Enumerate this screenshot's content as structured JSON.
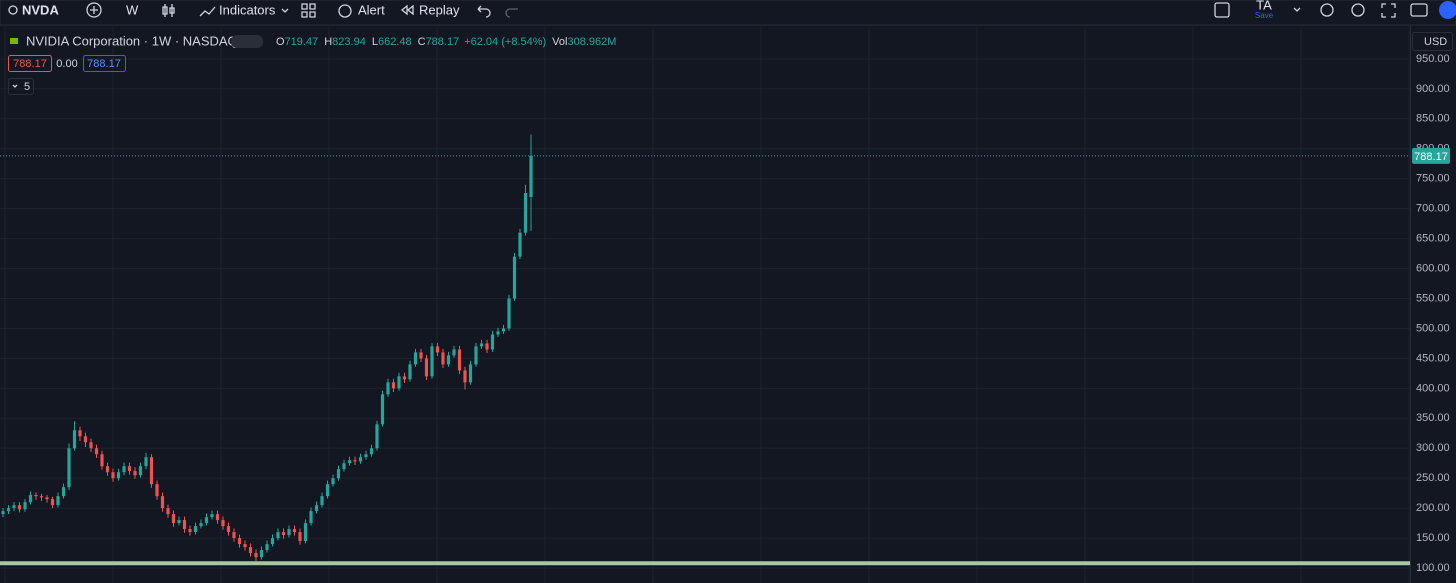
{
  "toolbar": {
    "symbol": "NVDA",
    "interval": "W",
    "indicators": "Indicators",
    "alert": "Alert",
    "replay": "Replay",
    "layout_name": "TA",
    "save": "Save"
  },
  "legend": {
    "title": "NVIDIA Corporation · 1W · NASDAQ",
    "o_label": "O",
    "h_label": "H",
    "l_label": "L",
    "c_label": "C",
    "change": "+62.04 (+8.54%)",
    "vol_label": "Vol",
    "volume": "308.962M",
    "sell": "788.17",
    "spread": "0.00",
    "buy": "788.17",
    "collapsed_count": "5"
  },
  "currency": "USD",
  "chart_data": {
    "type": "candlestick",
    "up_color": "#26a69a",
    "down_color": "#ef5350",
    "grid": true,
    "ylim": [
      75,
      1005
    ],
    "yticks": [
      {
        "value": 100,
        "label": "100.00"
      },
      {
        "value": 150,
        "label": "150.00"
      },
      {
        "value": 200,
        "label": "200.00"
      },
      {
        "value": 250,
        "label": "250.00"
      },
      {
        "value": 300,
        "label": "300.00"
      },
      {
        "value": 350,
        "label": "350.00"
      },
      {
        "value": 400,
        "label": "400.00"
      },
      {
        "value": 450,
        "label": "450.00"
      },
      {
        "value": 500,
        "label": "500.00"
      },
      {
        "value": 550,
        "label": "550.00"
      },
      {
        "value": 600,
        "label": "600.00"
      },
      {
        "value": 650,
        "label": "650.00"
      },
      {
        "value": 700,
        "label": "700.00"
      },
      {
        "value": 750,
        "label": "750.00"
      },
      {
        "value": 800,
        "label": "800.00"
      },
      {
        "value": 850,
        "label": "850.00"
      },
      {
        "value": 900,
        "label": "900.00"
      },
      {
        "value": 950,
        "label": "950.00"
      }
    ],
    "horizontal_line": {
      "value": 108,
      "color": "#a5c9a0"
    },
    "candles": [
      [
        190,
        200,
        185,
        195
      ],
      [
        195,
        205,
        190,
        200
      ],
      [
        200,
        210,
        195,
        205
      ],
      [
        205,
        210,
        193,
        198
      ],
      [
        198,
        215,
        194,
        210
      ],
      [
        210,
        228,
        206,
        222
      ],
      [
        222,
        226,
        214,
        220
      ],
      [
        220,
        224,
        212,
        218
      ],
      [
        218,
        222,
        209,
        215
      ],
      [
        215,
        219,
        200,
        205
      ],
      [
        205,
        226,
        201,
        220
      ],
      [
        220,
        241,
        216,
        235
      ],
      [
        235,
        308,
        230,
        300
      ],
      [
        300,
        345,
        296,
        330
      ],
      [
        330,
        336,
        312,
        320
      ],
      [
        320,
        326,
        302,
        310
      ],
      [
        310,
        316,
        294,
        300
      ],
      [
        300,
        306,
        284,
        290
      ],
      [
        290,
        296,
        264,
        270
      ],
      [
        270,
        276,
        254,
        260
      ],
      [
        260,
        266,
        244,
        250
      ],
      [
        250,
        266,
        246,
        260
      ],
      [
        260,
        276,
        255,
        270
      ],
      [
        270,
        276,
        256,
        262
      ],
      [
        262,
        268,
        249,
        255
      ],
      [
        255,
        276,
        251,
        270
      ],
      [
        270,
        292,
        265,
        285
      ],
      [
        285,
        290,
        234,
        240
      ],
      [
        240,
        246,
        214,
        220
      ],
      [
        220,
        226,
        194,
        200
      ],
      [
        200,
        206,
        184,
        190
      ],
      [
        190,
        196,
        169,
        175
      ],
      [
        175,
        186,
        171,
        180
      ],
      [
        180,
        186,
        159,
        165
      ],
      [
        165,
        171,
        154,
        160
      ],
      [
        160,
        176,
        156,
        170
      ],
      [
        170,
        181,
        166,
        175
      ],
      [
        175,
        191,
        171,
        185
      ],
      [
        185,
        196,
        181,
        190
      ],
      [
        190,
        196,
        174,
        180
      ],
      [
        180,
        186,
        164,
        170
      ],
      [
        170,
        176,
        154,
        160
      ],
      [
        160,
        166,
        144,
        150
      ],
      [
        150,
        156,
        134,
        140
      ],
      [
        140,
        146,
        129,
        135
      ],
      [
        135,
        141,
        119,
        125
      ],
      [
        125,
        131,
        112,
        118
      ],
      [
        118,
        136,
        114,
        130
      ],
      [
        130,
        146,
        126,
        140
      ],
      [
        140,
        156,
        136,
        150
      ],
      [
        150,
        166,
        146,
        160
      ],
      [
        160,
        166,
        149,
        155
      ],
      [
        155,
        171,
        151,
        165
      ],
      [
        165,
        171,
        154,
        160
      ],
      [
        160,
        166,
        139,
        145
      ],
      [
        145,
        181,
        141,
        175
      ],
      [
        175,
        201,
        171,
        195
      ],
      [
        195,
        211,
        191,
        205
      ],
      [
        205,
        226,
        201,
        220
      ],
      [
        220,
        246,
        216,
        240
      ],
      [
        240,
        256,
        236,
        250
      ],
      [
        250,
        271,
        246,
        265
      ],
      [
        265,
        281,
        261,
        275
      ],
      [
        275,
        286,
        271,
        280
      ],
      [
        280,
        286,
        272,
        278
      ],
      [
        278,
        291,
        274,
        285
      ],
      [
        285,
        296,
        281,
        290
      ],
      [
        290,
        306,
        286,
        300
      ],
      [
        300,
        346,
        296,
        340
      ],
      [
        340,
        396,
        336,
        390
      ],
      [
        390,
        416,
        386,
        410
      ],
      [
        410,
        416,
        394,
        400
      ],
      [
        400,
        426,
        396,
        420
      ],
      [
        420,
        426,
        409,
        415
      ],
      [
        415,
        446,
        411,
        440
      ],
      [
        440,
        466,
        436,
        460
      ],
      [
        460,
        466,
        444,
        450
      ],
      [
        450,
        456,
        414,
        420
      ],
      [
        420,
        476,
        416,
        470
      ],
      [
        470,
        476,
        454,
        460
      ],
      [
        460,
        466,
        434,
        440
      ],
      [
        440,
        461,
        436,
        455
      ],
      [
        455,
        471,
        451,
        465
      ],
      [
        465,
        471,
        424,
        430
      ],
      [
        430,
        436,
        398,
        410
      ],
      [
        410,
        446,
        406,
        440
      ],
      [
        440,
        476,
        436,
        470
      ],
      [
        470,
        481,
        466,
        475
      ],
      [
        475,
        481,
        459,
        465
      ],
      [
        465,
        496,
        461,
        490
      ],
      [
        490,
        501,
        486,
        495
      ],
      [
        495,
        506,
        491,
        500
      ],
      [
        500,
        556,
        496,
        550
      ],
      [
        550,
        626,
        546,
        620
      ],
      [
        620,
        666,
        616,
        660
      ],
      [
        660,
        740,
        655,
        726.13
      ],
      [
        719.47,
        823.94,
        662.48,
        788.17
      ]
    ]
  }
}
